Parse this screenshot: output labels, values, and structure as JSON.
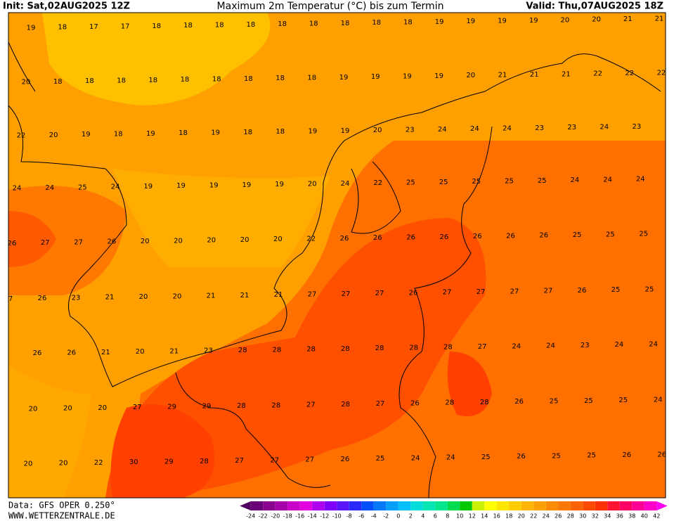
{
  "header": {
    "init": "Init: Sat,02AUG2025 12Z",
    "title": "Maximum 2m Temperatur (°C) bis zum Termin",
    "valid": "Valid: Thu,07AUG2025 18Z"
  },
  "footer": {
    "data": "Data: GFS OPER 0.250°",
    "site": "WWW.WETTERZENTRALE.DE"
  },
  "temperatures": [
    [
      19,
      18,
      17,
      17,
      18,
      18,
      18,
      18,
      18,
      18,
      18,
      18,
      18,
      19,
      19,
      19,
      19,
      20,
      20,
      21,
      21
    ],
    [
      20,
      18,
      18,
      18,
      18,
      18,
      18,
      18,
      18,
      18,
      19,
      19,
      19,
      19,
      20,
      21,
      21,
      21,
      22,
      22,
      22
    ],
    [
      22,
      20,
      19,
      18,
      19,
      18,
      19,
      18,
      18,
      19,
      19,
      20,
      23,
      24,
      24,
      24,
      23,
      23,
      24,
      23
    ],
    [
      24,
      24,
      25,
      24,
      19,
      19,
      19,
      19,
      19,
      20,
      24,
      22,
      25,
      25,
      25,
      25,
      25,
      24,
      24,
      24
    ],
    [
      26,
      27,
      27,
      26,
      20,
      20,
      20,
      20,
      20,
      22,
      26,
      26,
      26,
      26,
      26,
      26,
      26,
      25,
      25,
      25
    ],
    [
      27,
      26,
      23,
      21,
      20,
      20,
      21,
      21,
      21,
      27,
      27,
      27,
      26,
      27,
      27,
      27,
      27,
      26,
      25,
      25
    ],
    [
      26,
      26,
      21,
      20,
      21,
      23,
      28,
      28,
      28,
      28,
      28,
      28,
      28,
      27,
      24,
      24,
      23,
      24,
      24
    ],
    [
      20,
      20,
      20,
      27,
      29,
      29,
      28,
      28,
      27,
      28,
      27,
      26,
      28,
      28,
      26,
      25,
      25,
      25,
      24
    ],
    [
      20,
      20,
      22,
      30,
      29,
      28,
      27,
      27,
      27,
      26,
      25,
      24,
      24,
      25,
      26,
      25,
      25,
      26,
      26
    ]
  ],
  "colorbar": {
    "labels": [
      -24,
      -22,
      -20,
      -18,
      -16,
      -14,
      -12,
      -10,
      -8,
      -6,
      -4,
      -2,
      0,
      2,
      4,
      6,
      8,
      10,
      12,
      14,
      16,
      18,
      20,
      22,
      24,
      26,
      28,
      30,
      32,
      34,
      36,
      38,
      40,
      42
    ],
    "colors": [
      "#500060",
      "#6a0078",
      "#8a008f",
      "#a800a8",
      "#c800c8",
      "#e000e0",
      "#b000f0",
      "#8000ff",
      "#5a14ff",
      "#2828ff",
      "#0050ff",
      "#0078ff",
      "#00a0ff",
      "#00c0ff",
      "#00dcdc",
      "#00e6b4",
      "#00e68c",
      "#00dc50",
      "#00c800",
      "#c8f000",
      "#ffff00",
      "#ffe600",
      "#ffcc00",
      "#ffb400",
      "#ffa000",
      "#ff8c00",
      "#ff7800",
      "#ff6400",
      "#ff4b00",
      "#ff3200",
      "#ff1432",
      "#ff0064",
      "#ff0096",
      "#ff00c8",
      "#ff00f0"
    ]
  }
}
